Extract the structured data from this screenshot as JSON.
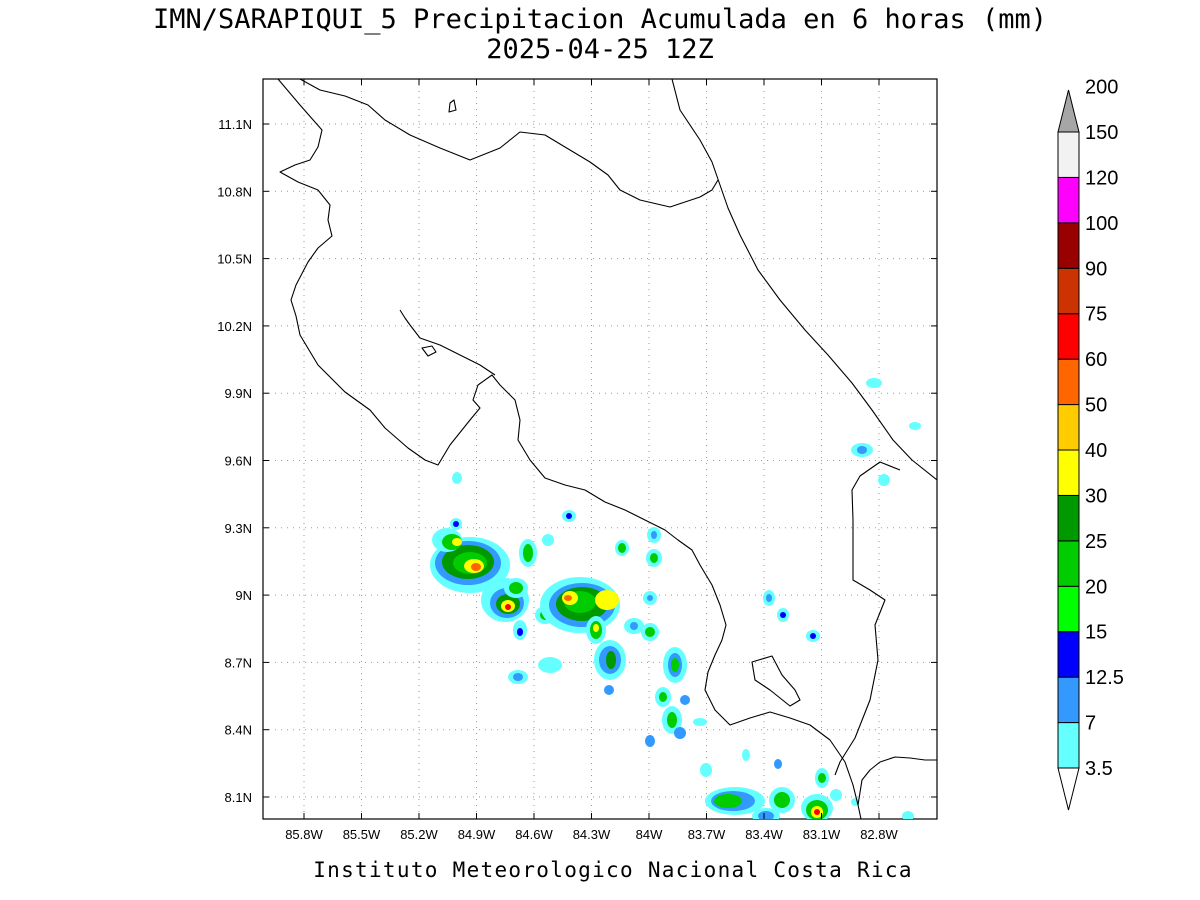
{
  "header": {
    "title": "IMN/SARAPIQUI_5 Precipitacion Acumulada en 6 horas (mm)",
    "subtitle": "2025-04-25 12Z"
  },
  "map": {
    "lon_labels": [
      "85.8W",
      "85.5W",
      "85.2W",
      "84.9W",
      "84.6W",
      "84.3W",
      "84W",
      "83.7W",
      "83.4W",
      "83.1W",
      "82.8W"
    ],
    "lat_labels": [
      "11.1N",
      "10.8N",
      "10.5N",
      "10.2N",
      "9.9N",
      "9.6N",
      "9.3N",
      "9N",
      "8.7N",
      "8.4N",
      "8.1N"
    ],
    "grid": true,
    "coastline_color": "#000000"
  },
  "colorbar": {
    "levels": [
      "3.5",
      "7",
      "12.5",
      "15",
      "20",
      "25",
      "30",
      "40",
      "50",
      "60",
      "75",
      "90",
      "100",
      "120",
      "150",
      "200"
    ],
    "colors": [
      "#66ffff",
      "#3399ff",
      "#0000ff",
      "#00ff00",
      "#00cc00",
      "#009900",
      "#ffff00",
      "#ffcc00",
      "#ff6600",
      "#ff0000",
      "#cc3300",
      "#990000",
      "#ff00ff",
      "#9933cc",
      "#f2f2f2",
      "#a6a6a6"
    ]
  },
  "footer": {
    "credit": "Instituto Meteorologico Nacional Costa Rica"
  }
}
